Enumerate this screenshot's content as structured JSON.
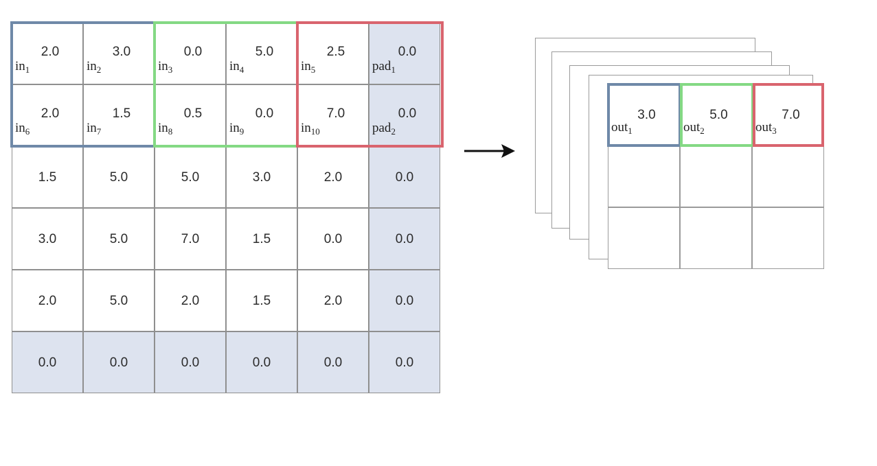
{
  "input": {
    "rows": [
      [
        {
          "v": "2.0",
          "l": "in",
          "s": "1"
        },
        {
          "v": "3.0",
          "l": "in",
          "s": "2"
        },
        {
          "v": "0.0",
          "l": "in",
          "s": "3"
        },
        {
          "v": "5.0",
          "l": "in",
          "s": "4"
        },
        {
          "v": "2.5",
          "l": "in",
          "s": "5"
        },
        {
          "v": "0.0",
          "l": "pad",
          "s": "1",
          "pad": true
        }
      ],
      [
        {
          "v": "2.0",
          "l": "in",
          "s": "6"
        },
        {
          "v": "1.5",
          "l": "in",
          "s": "7"
        },
        {
          "v": "0.5",
          "l": "in",
          "s": "8"
        },
        {
          "v": "0.0",
          "l": "in",
          "s": "9"
        },
        {
          "v": "7.0",
          "l": "in",
          "s": "10"
        },
        {
          "v": "0.0",
          "l": "pad",
          "s": "2",
          "pad": true
        }
      ],
      [
        {
          "v": "1.5"
        },
        {
          "v": "5.0"
        },
        {
          "v": "5.0"
        },
        {
          "v": "3.0"
        },
        {
          "v": "2.0"
        },
        {
          "v": "0.0",
          "pad": true
        }
      ],
      [
        {
          "v": "3.0"
        },
        {
          "v": "5.0"
        },
        {
          "v": "7.0"
        },
        {
          "v": "1.5"
        },
        {
          "v": "0.0"
        },
        {
          "v": "0.0",
          "pad": true
        }
      ],
      [
        {
          "v": "2.0"
        },
        {
          "v": "5.0"
        },
        {
          "v": "2.0"
        },
        {
          "v": "1.5"
        },
        {
          "v": "2.0"
        },
        {
          "v": "0.0",
          "pad": true
        }
      ],
      [
        {
          "v": "0.0",
          "pad": true
        },
        {
          "v": "0.0",
          "pad": true
        },
        {
          "v": "0.0",
          "pad": true
        },
        {
          "v": "0.0",
          "pad": true
        },
        {
          "v": "0.0",
          "pad": true
        },
        {
          "v": "0.0",
          "pad": true
        }
      ]
    ]
  },
  "output": {
    "rows": [
      [
        {
          "v": "3.0",
          "l": "out",
          "s": "1"
        },
        {
          "v": "5.0",
          "l": "out",
          "s": "2"
        },
        {
          "v": "7.0",
          "l": "out",
          "s": "3"
        }
      ],
      [
        {},
        {},
        {}
      ],
      [
        {},
        {},
        {}
      ]
    ]
  },
  "colors": {
    "window_1": "#6f89a8",
    "window_2": "#84d984",
    "window_3": "#d9646e",
    "padding_fill": "#dde3ef",
    "arrow": "#111111"
  }
}
